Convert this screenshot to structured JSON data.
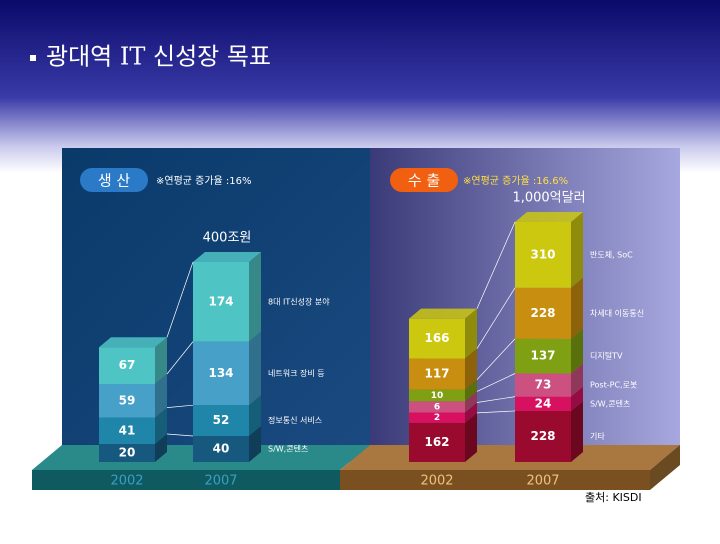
{
  "title": "광대역 IT 신성장 목표",
  "source": "출처: KISDI",
  "chart_data": [
    {
      "type": "bar",
      "stacked": true,
      "badge": "생 산",
      "subtitle": "※연평균 증가율 :16%",
      "total_label": "400조원",
      "categories": [
        "2002",
        "2007"
      ],
      "series": [
        {
          "name": "S/W,콘텐츠",
          "color": "#17597e",
          "values": [
            20,
            40
          ]
        },
        {
          "name": "정보통신 서비스",
          "color": "#1f86aa",
          "values": [
            41,
            52
          ]
        },
        {
          "name": "네트워크 장비 등",
          "color": "#46a0c8",
          "values": [
            59,
            134
          ]
        },
        {
          "name": "8대 IT신성장 분야",
          "color": "#4fc4c4",
          "values": [
            67,
            174
          ]
        }
      ]
    },
    {
      "type": "bar",
      "stacked": true,
      "badge": "수 출",
      "subtitle": "※연평균 증가율 :16.6%",
      "total_label": "1,000억달러",
      "categories": [
        "2002",
        "2007"
      ],
      "series": [
        {
          "name": "기타",
          "color": "#9a0a2e",
          "values": [
            162,
            228
          ]
        },
        {
          "name": "S/W,콘텐츠",
          "color": "#d81060",
          "values": [
            2,
            24
          ]
        },
        {
          "name": "Post-PC,로봇",
          "color": "#cc5080",
          "values": [
            6,
            73
          ]
        },
        {
          "name": "디지털TV",
          "color": "#7fa012",
          "values": [
            10,
            137
          ]
        },
        {
          "name": "차세대 이동통신",
          "color": "#c88e10",
          "values": [
            117,
            228
          ]
        },
        {
          "name": "반도체, SoC",
          "color": "#ccc810",
          "values": [
            166,
            310
          ]
        }
      ]
    }
  ]
}
